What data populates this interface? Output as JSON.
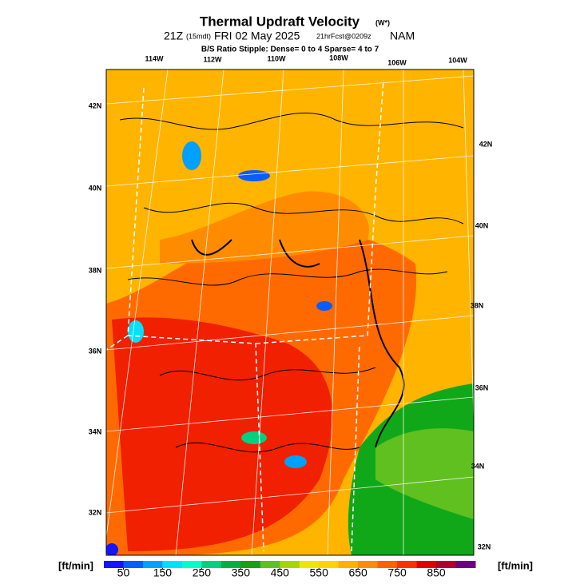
{
  "header": {
    "title": "Thermal Updraft Velocity",
    "title_note": "(W*)",
    "line2": {
      "time": "21Z",
      "local": "(15mdt)",
      "date": "FRI 02 May 2025",
      "fcst": "21hrFcst@0209z",
      "model": "NAM"
    },
    "line3": "B/S Ratio Stipple:  Dense= 0 to 4  Sparse= 4 to 7"
  },
  "map": {
    "lon_labels": [
      "114W",
      "112W",
      "110W",
      "108W",
      "106W",
      "104W"
    ],
    "lat_labels_left": [
      "42N",
      "40N",
      "38N",
      "36N",
      "34N",
      "32N"
    ],
    "lat_labels_right": [
      "42N",
      "40N",
      "38N",
      "36N",
      "34N",
      "32N"
    ]
  },
  "colorbar": {
    "unit_left": "[ft/min]",
    "unit_right": "[ft/min]",
    "lim": [
      0,
      950
    ],
    "ticks": [
      50,
      150,
      250,
      350,
      450,
      550,
      650,
      750,
      850
    ],
    "colors": [
      "#1414ff",
      "#0a5cff",
      "#00a0ff",
      "#00e0ff",
      "#00ffc8",
      "#00d080",
      "#00b040",
      "#18a018",
      "#60c020",
      "#a8d400",
      "#e8e800",
      "#ffd200",
      "#ffb000",
      "#ff8c00",
      "#ff6000",
      "#ff3000",
      "#e00000",
      "#b00030",
      "#6a0080"
    ]
  }
}
